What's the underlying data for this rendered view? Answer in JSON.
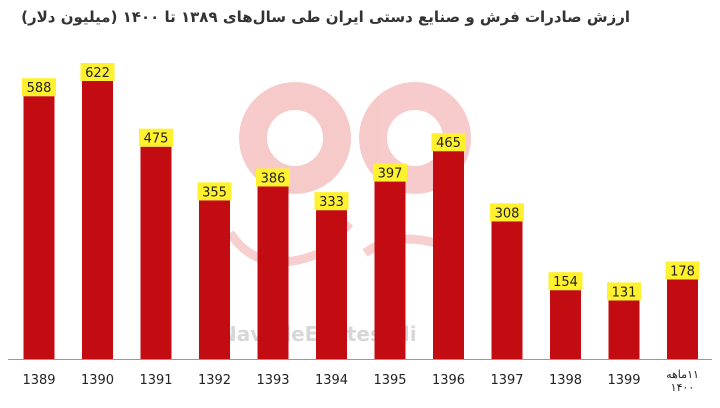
{
  "colors": {
    "bar": "#c20c12",
    "label_bg": "#fff12e",
    "label_text": "#222222",
    "axis": "#999999",
    "watermark": "#f1a0a0"
  },
  "watermark": {
    "handle": "@NavadeEghtesadi"
  },
  "chart_data": {
    "type": "bar",
    "title": "ارزش صادرات فرش و صنایع دستی ایران طی سال‌های ۱۳۸۹ تا ۱۴۰۰ (میلیون دلار)",
    "categories": [
      "1389",
      "1390",
      "1391",
      "1392",
      "1393",
      "1394",
      "1395",
      "1396",
      "1397",
      "1398",
      "1399",
      "۱۱ماهه ۱۴۰۰"
    ],
    "values": [
      588,
      622,
      475,
      355,
      386,
      333,
      397,
      465,
      308,
      154,
      131,
      178
    ],
    "ylim": [
      0,
      660
    ],
    "grid": false
  }
}
